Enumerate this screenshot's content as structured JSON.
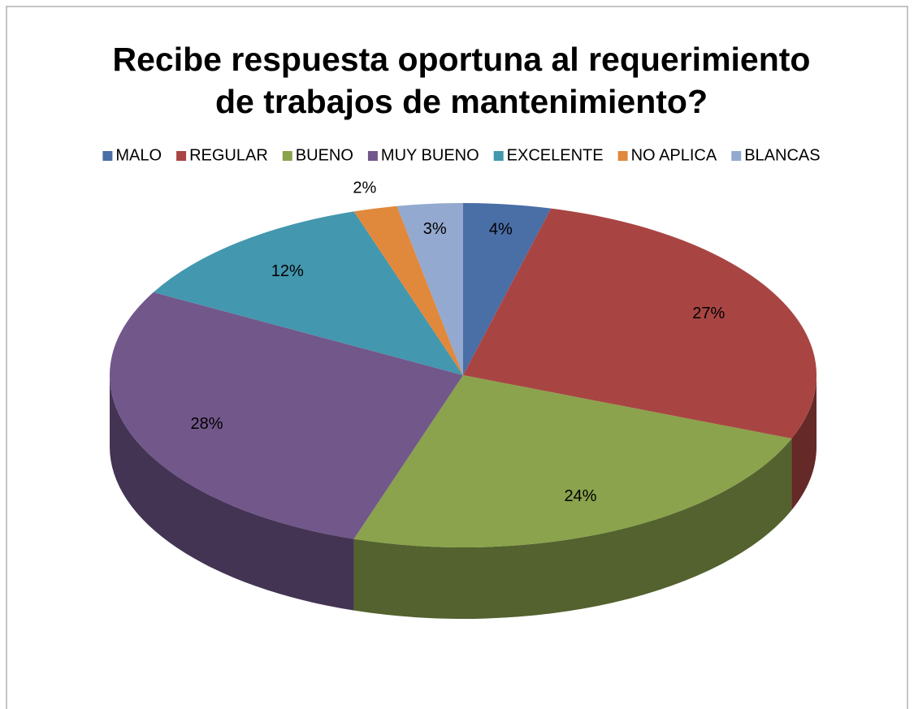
{
  "chart_data": {
    "type": "pie3d",
    "title": [
      "Recibe respuesta oportuna al requerimiento",
      "de trabajos de mantenimiento?"
    ],
    "categories": [
      "MALO",
      "REGULAR",
      "BUENO",
      "MUY BUENO",
      "EXCELENTE",
      "NO APLICA",
      "BLANCAS"
    ],
    "values": [
      4,
      27,
      24,
      28,
      12,
      2,
      3
    ],
    "value_labels": [
      "4%",
      "27%",
      "24%",
      "28%",
      "12%",
      "2%",
      "3%"
    ],
    "colors": [
      "#4a6ea6",
      "#a84543",
      "#8aa34c",
      "#72578b",
      "#4397ae",
      "#e0883c",
      "#93a9cf"
    ],
    "legend": "top"
  }
}
